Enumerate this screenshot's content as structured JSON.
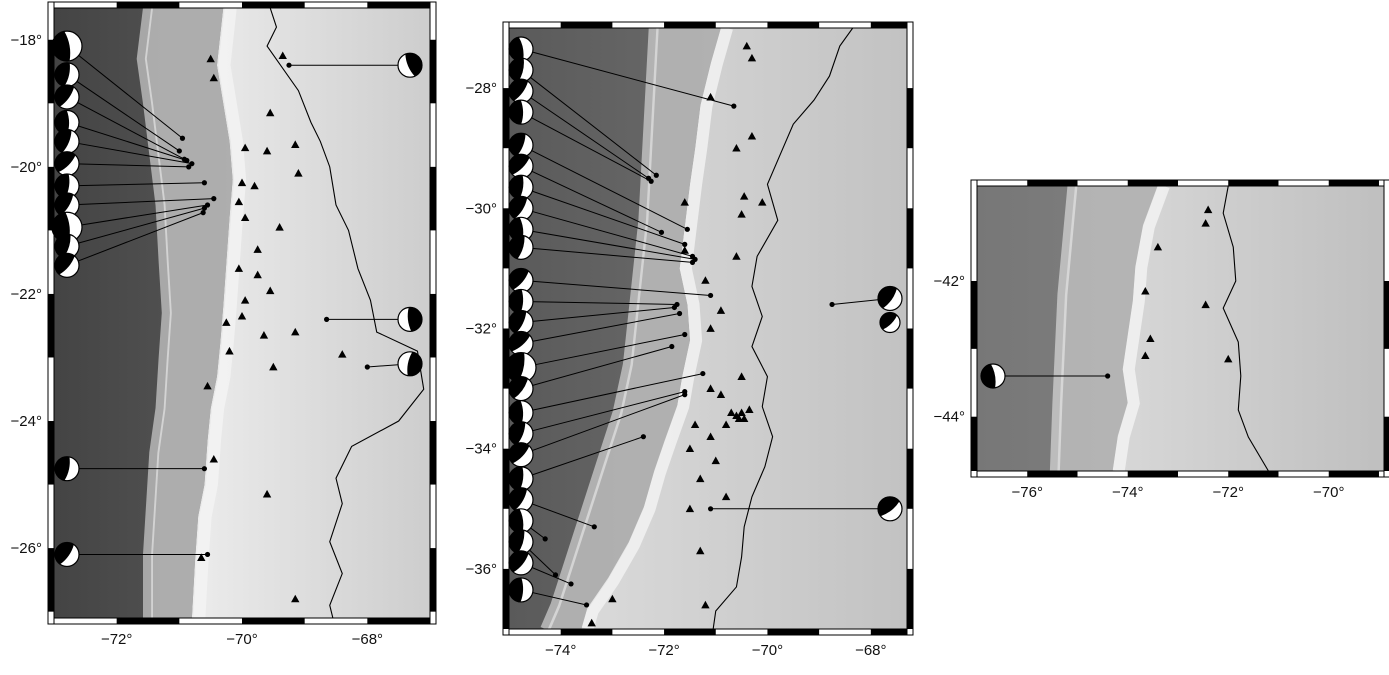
{
  "panels": [
    {
      "id": "north",
      "lon_range": [
        -73.0,
        -67.0
      ],
      "lat_range": [
        -27.1,
        -17.5
      ],
      "xticks": [
        {
          "value": -72,
          "label": "−72°"
        },
        {
          "value": -70,
          "label": "−70°"
        },
        {
          "value": -68,
          "label": "−68°"
        }
      ],
      "yticks": [
        {
          "value": -18,
          "label": "−18°"
        },
        {
          "value": -20,
          "label": "−20°"
        },
        {
          "value": -22,
          "label": "−22°"
        },
        {
          "value": -24,
          "label": "−24°"
        },
        {
          "value": -26,
          "label": "−26°"
        }
      ],
      "coast": [
        [
          -70.3,
          -17.5
        ],
        [
          -70.4,
          -18.4
        ],
        [
          -70.3,
          -19.0
        ],
        [
          -70.2,
          -19.6
        ],
        [
          -70.15,
          -20.2
        ],
        [
          -70.2,
          -20.8
        ],
        [
          -70.25,
          -21.5
        ],
        [
          -70.3,
          -22.2
        ],
        [
          -70.35,
          -22.8
        ],
        [
          -70.4,
          -23.3
        ],
        [
          -70.5,
          -23.8
        ],
        [
          -70.55,
          -24.3
        ],
        [
          -70.6,
          -25.0
        ],
        [
          -70.7,
          -25.5
        ],
        [
          -70.75,
          -26.2
        ],
        [
          -70.8,
          -27.1
        ]
      ],
      "trench": [
        [
          -71.6,
          -17.5
        ],
        [
          -71.7,
          -18.3
        ],
        [
          -71.6,
          -19.0
        ],
        [
          -71.5,
          -19.8
        ],
        [
          -71.4,
          -20.6
        ],
        [
          -71.35,
          -21.5
        ],
        [
          -71.3,
          -22.3
        ],
        [
          -71.35,
          -23.0
        ],
        [
          -71.4,
          -23.8
        ],
        [
          -71.5,
          -24.5
        ],
        [
          -71.55,
          -25.3
        ],
        [
          -71.6,
          -26.1
        ],
        [
          -71.6,
          -27.1
        ]
      ],
      "border": [
        [
          -69.55,
          -17.5
        ],
        [
          -69.45,
          -17.8
        ],
        [
          -69.6,
          -18.1
        ],
        [
          -69.1,
          -18.8
        ],
        [
          -68.9,
          -19.3
        ],
        [
          -68.75,
          -19.6
        ],
        [
          -68.6,
          -20.0
        ],
        [
          -68.5,
          -20.6
        ],
        [
          -68.3,
          -21.0
        ],
        [
          -68.15,
          -21.6
        ],
        [
          -67.95,
          -22.1
        ],
        [
          -67.85,
          -22.6
        ],
        [
          -67.2,
          -22.9
        ],
        [
          -67.1,
          -23.5
        ],
        [
          -67.5,
          -24.0
        ],
        [
          -68.25,
          -24.4
        ],
        [
          -68.5,
          -24.9
        ],
        [
          -68.4,
          -25.3
        ],
        [
          -68.6,
          -25.9
        ],
        [
          -68.4,
          -26.4
        ],
        [
          -68.6,
          -26.9
        ],
        [
          -68.55,
          -27.1
        ]
      ],
      "volcanoes": [
        [
          -70.5,
          -18.3
        ],
        [
          -69.35,
          -18.25
        ],
        [
          -70.45,
          -18.6
        ],
        [
          -69.55,
          -19.15
        ],
        [
          -69.95,
          -19.7
        ],
        [
          -69.6,
          -19.75
        ],
        [
          -69.15,
          -19.65
        ],
        [
          -69.1,
          -20.1
        ],
        [
          -70.0,
          -20.25
        ],
        [
          -69.8,
          -20.3
        ],
        [
          -70.05,
          -20.55
        ],
        [
          -69.95,
          -20.8
        ],
        [
          -69.4,
          -20.95
        ],
        [
          -69.75,
          -21.3
        ],
        [
          -70.05,
          -21.6
        ],
        [
          -69.75,
          -21.7
        ],
        [
          -69.55,
          -21.95
        ],
        [
          -69.95,
          -22.1
        ],
        [
          -70.0,
          -22.35
        ],
        [
          -70.25,
          -22.45
        ],
        [
          -69.65,
          -22.65
        ],
        [
          -69.15,
          -22.6
        ],
        [
          -70.2,
          -22.9
        ],
        [
          -68.4,
          -22.95
        ],
        [
          -69.5,
          -23.15
        ],
        [
          -70.55,
          -23.45
        ],
        [
          -70.45,
          -24.6
        ],
        [
          -69.6,
          -25.15
        ],
        [
          -70.65,
          -26.15
        ],
        [
          -69.15,
          -26.8
        ]
      ],
      "events": [
        {
          "lon": -70.95,
          "lat": -19.55,
          "pos": -18.1
        },
        {
          "lon": -71.0,
          "lat": -19.75,
          "pos": -18.55
        },
        {
          "lon": -70.92,
          "lat": -19.88,
          "pos": -18.9
        },
        {
          "lon": -70.88,
          "lat": -19.9,
          "pos": -19.3
        },
        {
          "lon": -70.8,
          "lat": -19.95,
          "pos": -19.6
        },
        {
          "lon": -70.85,
          "lat": -20.0,
          "pos": -19.95
        },
        {
          "lon": -70.6,
          "lat": -20.25,
          "pos": -20.3
        },
        {
          "lon": -70.45,
          "lat": -20.5,
          "pos": -20.6
        },
        {
          "lon": -70.55,
          "lat": -20.6,
          "pos": -20.95
        },
        {
          "lon": -70.6,
          "lat": -20.65,
          "pos": -21.25
        },
        {
          "lon": -70.62,
          "lat": -20.72,
          "pos": -21.55
        },
        {
          "lon": -69.25,
          "lat": -18.4,
          "pos": -18.4,
          "side": "right"
        },
        {
          "lon": -68.65,
          "lat": -22.4,
          "pos": -22.4,
          "side": "right"
        },
        {
          "lon": -68.0,
          "lat": -23.15,
          "pos": -23.1,
          "side": "right"
        },
        {
          "lon": -70.6,
          "lat": -24.75,
          "pos": -24.75
        },
        {
          "lon": -70.55,
          "lat": -26.1,
          "pos": -26.1
        }
      ]
    },
    {
      "id": "central",
      "lon_range": [
        -75.0,
        -67.3
      ],
      "lat_range": [
        -37.0,
        -27.0
      ],
      "xticks": [
        {
          "value": -74,
          "label": "−74°"
        },
        {
          "value": -72,
          "label": "−72°"
        },
        {
          "value": -70,
          "label": "−70°"
        },
        {
          "value": -68,
          "label": "−68°"
        }
      ],
      "yticks": [
        {
          "value": -28,
          "label": "−28°"
        },
        {
          "value": -30,
          "label": "−30°"
        },
        {
          "value": -32,
          "label": "−32°"
        },
        {
          "value": -34,
          "label": "−34°"
        },
        {
          "value": -36,
          "label": "−36°"
        }
      ],
      "coast": [
        [
          -70.9,
          -27.0
        ],
        [
          -71.1,
          -27.6
        ],
        [
          -71.3,
          -28.3
        ],
        [
          -71.4,
          -29.0
        ],
        [
          -71.5,
          -29.6
        ],
        [
          -71.6,
          -30.3
        ],
        [
          -71.7,
          -31.0
        ],
        [
          -71.55,
          -31.6
        ],
        [
          -71.5,
          -32.2
        ],
        [
          -71.65,
          -32.8
        ],
        [
          -71.75,
          -33.3
        ],
        [
          -72.0,
          -33.9
        ],
        [
          -72.2,
          -34.4
        ],
        [
          -72.4,
          -35.0
        ],
        [
          -72.7,
          -35.6
        ],
        [
          -73.1,
          -36.2
        ],
        [
          -73.5,
          -36.7
        ],
        [
          -73.6,
          -37.0
        ]
      ],
      "trench": [
        [
          -72.3,
          -27.0
        ],
        [
          -72.35,
          -27.8
        ],
        [
          -72.4,
          -28.6
        ],
        [
          -72.45,
          -29.4
        ],
        [
          -72.5,
          -30.2
        ],
        [
          -72.6,
          -31.0
        ],
        [
          -72.7,
          -31.8
        ],
        [
          -72.8,
          -32.6
        ],
        [
          -73.0,
          -33.4
        ],
        [
          -73.3,
          -34.2
        ],
        [
          -73.6,
          -35.0
        ],
        [
          -73.9,
          -35.8
        ],
        [
          -74.2,
          -36.6
        ],
        [
          -74.4,
          -37.0
        ]
      ],
      "border": [
        [
          -68.35,
          -27.0
        ],
        [
          -68.6,
          -27.3
        ],
        [
          -68.8,
          -27.8
        ],
        [
          -69.1,
          -28.2
        ],
        [
          -69.5,
          -28.6
        ],
        [
          -69.75,
          -29.1
        ],
        [
          -70.0,
          -29.6
        ],
        [
          -69.8,
          -30.2
        ],
        [
          -70.2,
          -30.8
        ],
        [
          -70.3,
          -31.3
        ],
        [
          -70.1,
          -31.8
        ],
        [
          -70.3,
          -32.3
        ],
        [
          -70.0,
          -32.8
        ],
        [
          -70.1,
          -33.3
        ],
        [
          -69.9,
          -33.8
        ],
        [
          -70.05,
          -34.3
        ],
        [
          -70.3,
          -34.8
        ],
        [
          -70.45,
          -35.3
        ],
        [
          -70.5,
          -35.8
        ],
        [
          -70.6,
          -36.3
        ],
        [
          -71.0,
          -36.7
        ],
        [
          -71.05,
          -37.0
        ]
      ],
      "volcanoes": [
        [
          -70.4,
          -27.3
        ],
        [
          -70.3,
          -27.5
        ],
        [
          -71.1,
          -28.15
        ],
        [
          -70.3,
          -28.8
        ],
        [
          -70.6,
          -29.0
        ],
        [
          -70.45,
          -29.8
        ],
        [
          -71.6,
          -29.9
        ],
        [
          -70.1,
          -29.9
        ],
        [
          -70.5,
          -30.1
        ],
        [
          -71.6,
          -30.7
        ],
        [
          -70.6,
          -30.8
        ],
        [
          -71.2,
          -31.2
        ],
        [
          -70.9,
          -31.7
        ],
        [
          -71.1,
          -32.0
        ],
        [
          -70.5,
          -32.8
        ],
        [
          -71.1,
          -33.0
        ],
        [
          -70.9,
          -33.1
        ],
        [
          -70.7,
          -33.4
        ],
        [
          -70.6,
          -33.45
        ],
        [
          -70.5,
          -33.4
        ],
        [
          -70.45,
          -33.5
        ],
        [
          -70.35,
          -33.35
        ],
        [
          -70.55,
          -33.5
        ],
        [
          -71.4,
          -33.6
        ],
        [
          -71.1,
          -33.8
        ],
        [
          -70.8,
          -33.6
        ],
        [
          -71.0,
          -34.2
        ],
        [
          -71.3,
          -34.5
        ],
        [
          -71.5,
          -34.0
        ],
        [
          -70.8,
          -34.8
        ],
        [
          -71.5,
          -35.0
        ],
        [
          -71.3,
          -35.7
        ],
        [
          -71.2,
          -36.6
        ],
        [
          -73.0,
          -36.5
        ],
        [
          -73.4,
          -36.9
        ]
      ],
      "events": [
        {
          "lon": -70.65,
          "lat": -28.3,
          "pos": -27.35
        },
        {
          "lon": -72.15,
          "lat": -29.45,
          "pos": -27.7
        },
        {
          "lon": -72.3,
          "lat": -29.5,
          "pos": -28.05
        },
        {
          "lon": -72.25,
          "lat": -29.55,
          "pos": -28.4
        },
        {
          "lon": -71.55,
          "lat": -30.35,
          "pos": -28.95
        },
        {
          "lon": -72.05,
          "lat": -30.4,
          "pos": -29.3
        },
        {
          "lon": -71.6,
          "lat": -30.6,
          "pos": -29.65
        },
        {
          "lon": -71.45,
          "lat": -30.8,
          "pos": -30.0
        },
        {
          "lon": -71.4,
          "lat": -30.85,
          "pos": -30.35
        },
        {
          "lon": -71.45,
          "lat": -30.9,
          "pos": -30.65
        },
        {
          "lon": -71.1,
          "lat": -31.45,
          "pos": -31.2
        },
        {
          "lon": -71.75,
          "lat": -31.6,
          "pos": -31.55
        },
        {
          "lon": -71.8,
          "lat": -31.65,
          "pos": -31.9
        },
        {
          "lon": -71.7,
          "lat": -31.75,
          "pos": -32.25
        },
        {
          "lon": -71.6,
          "lat": -32.1,
          "pos": -32.65
        },
        {
          "lon": -71.85,
          "lat": -32.3,
          "pos": -33.0
        },
        {
          "lon": -71.25,
          "lat": -32.75,
          "pos": -33.4
        },
        {
          "lon": -71.6,
          "lat": -33.05,
          "pos": -33.75
        },
        {
          "lon": -71.6,
          "lat": -33.1,
          "pos": -34.1
        },
        {
          "lon": -72.4,
          "lat": -33.8,
          "pos": -34.5
        },
        {
          "lon": -73.35,
          "lat": -35.3,
          "pos": -34.85
        },
        {
          "lon": -74.3,
          "lat": -35.5,
          "pos": -35.2
        },
        {
          "lon": -74.1,
          "lat": -36.1,
          "pos": -35.55
        },
        {
          "lon": -73.8,
          "lat": -36.25,
          "pos": -35.9
        },
        {
          "lon": -73.5,
          "lat": -36.6,
          "pos": -36.35
        },
        {
          "lon": -68.75,
          "lat": -31.6,
          "pos": -31.5,
          "side": "right"
        },
        {
          "lon": -71.1,
          "lat": -35.0,
          "pos": -35.0,
          "side": "right"
        }
      ],
      "extra_beachballs": [
        {
          "lon": -67.5,
          "lat": -31.9,
          "side": "right"
        }
      ]
    },
    {
      "id": "south",
      "lon_range": [
        -77.0,
        -68.9
      ],
      "lat_range": [
        -44.8,
        -40.6
      ],
      "xticks": [
        {
          "value": -76,
          "label": "−76°"
        },
        {
          "value": -74,
          "label": "−74°"
        },
        {
          "value": -72,
          "label": "−72°"
        },
        {
          "value": -70,
          "label": "−70°"
        }
      ],
      "yticks": [
        {
          "value": -42,
          "label": "−42°"
        },
        {
          "value": -44,
          "label": "−44°"
        }
      ],
      "coast": [
        [
          -73.4,
          -40.6
        ],
        [
          -73.7,
          -41.2
        ],
        [
          -73.85,
          -41.8
        ],
        [
          -73.9,
          -42.3
        ],
        [
          -74.0,
          -42.8
        ],
        [
          -74.1,
          -43.3
        ],
        [
          -74.0,
          -43.8
        ],
        [
          -74.2,
          -44.3
        ],
        [
          -74.3,
          -44.8
        ]
      ],
      "trench": [
        [
          -75.2,
          -40.6
        ],
        [
          -75.3,
          -41.4
        ],
        [
          -75.4,
          -42.2
        ],
        [
          -75.45,
          -43.0
        ],
        [
          -75.5,
          -43.8
        ],
        [
          -75.55,
          -44.8
        ]
      ],
      "border": [
        [
          -72.0,
          -40.6
        ],
        [
          -72.1,
          -41.0
        ],
        [
          -71.9,
          -41.5
        ],
        [
          -71.85,
          -42.0
        ],
        [
          -72.1,
          -42.4
        ],
        [
          -71.8,
          -42.9
        ],
        [
          -71.75,
          -43.4
        ],
        [
          -71.8,
          -43.9
        ],
        [
          -71.6,
          -44.3
        ],
        [
          -71.2,
          -44.8
        ]
      ],
      "volcanoes": [
        [
          -72.4,
          -40.95
        ],
        [
          -72.45,
          -41.15
        ],
        [
          -73.4,
          -41.5
        ],
        [
          -73.65,
          -42.15
        ],
        [
          -72.45,
          -42.35
        ],
        [
          -73.55,
          -42.85
        ],
        [
          -73.65,
          -43.1
        ],
        [
          -72.0,
          -43.15
        ]
      ],
      "events": [
        {
          "lon": -74.4,
          "lat": -43.4,
          "pos": -43.4
        }
      ]
    }
  ]
}
